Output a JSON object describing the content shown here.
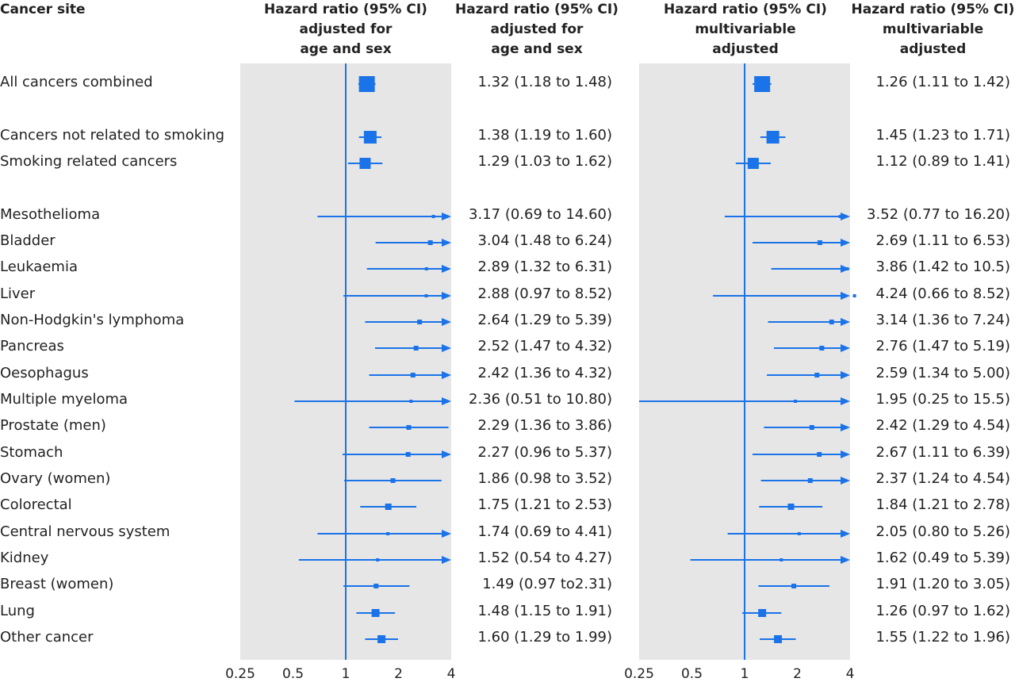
{
  "header": {
    "site": "Cancer site",
    "col1_line1": "Hazard ratio (95% CI)",
    "col1_line2": "adjusted for",
    "col1_line3": "age and sex",
    "col2_line1": "Hazard ratio (95% CI)",
    "col2_line2": "adjusted for",
    "col2_line3": "age and sex",
    "col3_line1": "Hazard ratio (95% CI)",
    "col3_line2": "multivariable",
    "col3_line3": "adjusted",
    "col4_line1": "Hazard ratio (95% CI)",
    "col4_line2": "multivariable",
    "col4_line3": "adjusted"
  },
  "colors": {
    "panel_bg": "#e6e6e6",
    "mark": "#1a73e8"
  },
  "chart_data": {
    "type": "forest",
    "x_scale": "log",
    "xlim": [
      0.25,
      4
    ],
    "reference_line": 1,
    "tick_labels": [
      "0.25",
      "0.5",
      "1",
      "2",
      "4"
    ],
    "rows": [
      {
        "label": "All cancers combined",
        "hr1": 1.32,
        "lo1": 1.18,
        "hi1": 1.48,
        "text1": "1.32 (1.18 to 1.48)",
        "hr2": 1.26,
        "lo2": 1.11,
        "hi2": 1.42,
        "text2": "1.26 (1.11 to 1.42)",
        "size": 10
      },
      {
        "label": "Cancers not related to smoking",
        "hr1": 1.38,
        "lo1": 1.19,
        "hi1": 1.6,
        "text1": "1.38 (1.19 to 1.60)",
        "hr2": 1.45,
        "lo2": 1.23,
        "hi2": 1.71,
        "text2": "1.45 (1.23 to 1.71)",
        "size": 8
      },
      {
        "label": "Smoking related cancers",
        "hr1": 1.29,
        "lo1": 1.03,
        "hi1": 1.62,
        "text1": "1.29 (1.03 to 1.62)",
        "hr2": 1.12,
        "lo2": 0.89,
        "hi2": 1.41,
        "text2": "1.12 (0.89 to 1.41)",
        "size": 7
      },
      {
        "label": "Mesothelioma",
        "hr1": 3.17,
        "lo1": 0.69,
        "hi1": 14.6,
        "text1": "3.17 (0.69 to 14.60)",
        "hr2": 3.52,
        "lo2": 0.77,
        "hi2": 16.2,
        "text2": "3.52 (0.77 to 16.20)",
        "size": 2
      },
      {
        "label": "Bladder",
        "hr1": 3.04,
        "lo1": 1.48,
        "hi1": 6.24,
        "text1": "3.04 (1.48 to 6.24)",
        "hr2": 2.69,
        "lo2": 1.11,
        "hi2": 6.53,
        "text2": "2.69 (1.11 to 6.53)",
        "size": 3
      },
      {
        "label": "Leukaemia",
        "hr1": 2.89,
        "lo1": 1.32,
        "hi1": 6.31,
        "text1": "2.89 (1.32 to 6.31)",
        "hr2": 3.86,
        "lo2": 1.42,
        "hi2": 10.5,
        "text2": "3.86 (1.42 to 10.5)",
        "size": 2
      },
      {
        "label": "Liver",
        "hr1": 2.88,
        "lo1": 0.97,
        "hi1": 8.52,
        "text1": "2.88 (0.97 to 8.52)",
        "hr2": 4.24,
        "lo2": 0.66,
        "hi2": 8.52,
        "text2": "4.24 (0.66 to 8.52)",
        "size": 2
      },
      {
        "label": "Non-Hodgkin's lymphoma",
        "hr1": 2.64,
        "lo1": 1.29,
        "hi1": 5.39,
        "text1": "2.64 (1.29 to 5.39)",
        "hr2": 3.14,
        "lo2": 1.36,
        "hi2": 7.24,
        "text2": "3.14 (1.36 to 7.24)",
        "size": 3
      },
      {
        "label": "Pancreas",
        "hr1": 2.52,
        "lo1": 1.47,
        "hi1": 4.32,
        "text1": "2.52 (1.47 to 4.32)",
        "hr2": 2.76,
        "lo2": 1.47,
        "hi2": 5.19,
        "text2": "2.76 (1.47 to 5.19)",
        "size": 3
      },
      {
        "label": "Oesophagus",
        "hr1": 2.42,
        "lo1": 1.36,
        "hi1": 4.32,
        "text1": "2.42 (1.36 to 4.32)",
        "hr2": 2.59,
        "lo2": 1.34,
        "hi2": 5.0,
        "text2": "2.59 (1.34 to 5.00)",
        "size": 3
      },
      {
        "label": "Multiple myeloma",
        "hr1": 2.36,
        "lo1": 0.51,
        "hi1": 10.8,
        "text1": "2.36 (0.51 to 10.80)",
        "hr2": 1.95,
        "lo2": 0.25,
        "hi2": 15.5,
        "text2": "1.95 (0.25 to 15.5)",
        "size": 2
      },
      {
        "label": "Prostate (men)",
        "hr1": 2.29,
        "lo1": 1.36,
        "hi1": 3.86,
        "text1": "2.29 (1.36 to 3.86)",
        "hr2": 2.42,
        "lo2": 1.29,
        "hi2": 4.54,
        "text2": "2.42 (1.29 to 4.54)",
        "size": 3
      },
      {
        "label": "Stomach",
        "hr1": 2.27,
        "lo1": 0.96,
        "hi1": 5.37,
        "text1": "2.27 (0.96 to 5.37)",
        "hr2": 2.67,
        "lo2": 1.11,
        "hi2": 6.39,
        "text2": "2.67 (1.11 to 6.39)",
        "size": 3
      },
      {
        "label": "Ovary (women)",
        "hr1": 1.86,
        "lo1": 0.98,
        "hi1": 3.52,
        "text1": "1.86 (0.98 to 3.52)",
        "hr2": 2.37,
        "lo2": 1.24,
        "hi2": 4.54,
        "text2": "2.37 (1.24 to 4.54)",
        "size": 3
      },
      {
        "label": "Colorectal",
        "hr1": 1.75,
        "lo1": 1.21,
        "hi1": 2.53,
        "text1": "1.75 (1.21 to 2.53)",
        "hr2": 1.84,
        "lo2": 1.21,
        "hi2": 2.78,
        "text2": "1.84 (1.21 to 2.78)",
        "size": 4
      },
      {
        "label": "Central nervous system",
        "hr1": 1.74,
        "lo1": 0.69,
        "hi1": 4.41,
        "text1": "1.74 (0.69 to 4.41)",
        "hr2": 2.05,
        "lo2": 0.8,
        "hi2": 5.26,
        "text2": "2.05 (0.80 to 5.26)",
        "size": 2
      },
      {
        "label": "Kidney",
        "hr1": 1.52,
        "lo1": 0.54,
        "hi1": 4.27,
        "text1": "1.52 (0.54 to 4.27)",
        "hr2": 1.62,
        "lo2": 0.49,
        "hi2": 5.39,
        "text2": "1.62 (0.49 to 5.39)",
        "size": 2
      },
      {
        "label": "Breast (women)",
        "hr1": 1.49,
        "lo1": 0.97,
        "hi1": 2.31,
        "text1": "1.49 (0.97 to2.31)",
        "hr2": 1.91,
        "lo2": 1.2,
        "hi2": 3.05,
        "text2": "1.91 (1.20 to 3.05)",
        "size": 3
      },
      {
        "label": "Lung",
        "hr1": 1.48,
        "lo1": 1.15,
        "hi1": 1.91,
        "text1": "1.48 (1.15 to 1.91)",
        "hr2": 1.26,
        "lo2": 0.97,
        "hi2": 1.62,
        "text2": "1.26 (0.97 to 1.62)",
        "size": 5
      },
      {
        "label": "Other cancer",
        "hr1": 1.6,
        "lo1": 1.29,
        "hi1": 1.99,
        "text1": "1.60 (1.29 to 1.99)",
        "hr2": 1.55,
        "lo2": 1.22,
        "hi2": 1.96,
        "text2": "1.55 (1.22 to 1.96)",
        "size": 5
      }
    ]
  }
}
